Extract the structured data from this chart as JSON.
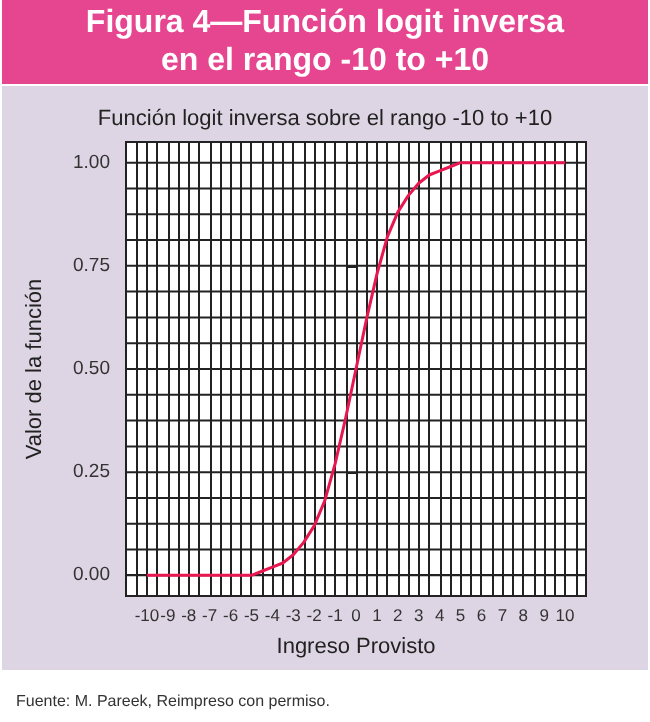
{
  "chart_data": {
    "type": "line",
    "title": "Figura 4—Función logit inversa en el rango -10 to +10",
    "subtitle": "Función logit inversa sobre el rango -10 to +10",
    "xlabel": "Ingreso Provisto",
    "ylabel": "Valor de la función",
    "annotations": [
      "Fuente:  M. Pareek, Reimpreso con permiso."
    ],
    "x": [
      -10,
      -9,
      -8,
      -7,
      -6,
      -5,
      -4.5,
      -4,
      -3.5,
      -3,
      -2.5,
      -2,
      -1.5,
      -1,
      -0.5,
      0,
      0.5,
      1,
      1.5,
      2,
      2.5,
      3,
      3.5,
      4,
      4.5,
      5,
      6,
      7,
      8,
      9,
      10
    ],
    "series": [
      {
        "color": "#e8174f",
        "values": [
          0,
          0,
          0,
          0,
          0,
          0,
          0.01,
          0.02,
          0.03,
          0.05,
          0.08,
          0.12,
          0.18,
          0.27,
          0.38,
          0.5,
          0.62,
          0.73,
          0.82,
          0.88,
          0.92,
          0.95,
          0.97,
          0.98,
          0.99,
          1,
          1,
          1,
          1,
          1,
          1
        ]
      }
    ],
    "xlim": [
      -11,
      11
    ],
    "xticks": [
      -10,
      -9,
      -8,
      -7,
      -6,
      -5,
      -4,
      -3,
      -2,
      -1,
      0,
      1,
      2,
      3,
      4,
      5,
      6,
      7,
      8,
      9,
      10
    ],
    "ylim": [
      -0.05,
      1.05
    ],
    "yticks": [
      {
        "value": 0,
        "label": "0.00"
      },
      {
        "value": 0.25,
        "label": "0.25"
      },
      {
        "value": 0.5,
        "label": "0.50"
      },
      {
        "value": 0.75,
        "label": "0.75"
      },
      {
        "value": 1,
        "label": "1.00"
      }
    ],
    "grid": true,
    "marker": "none",
    "line_style": "solid"
  }
}
